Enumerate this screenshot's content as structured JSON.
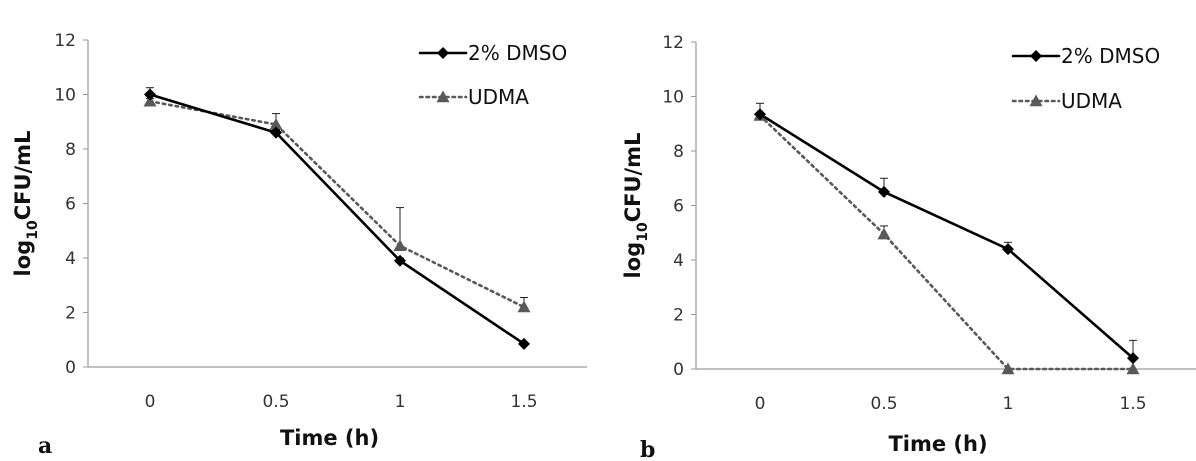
{
  "chart_data": [
    {
      "type": "line",
      "panel_label": "a",
      "xlabel": "Time (h)",
      "ylabel": {
        "main": "log",
        "sub": "10",
        "rest": "CFU/mL"
      },
      "categories": [
        "0",
        "0.5",
        "1",
        "1.5"
      ],
      "x": [
        0,
        0.5,
        1,
        1.5
      ],
      "ylim": [
        0,
        12
      ],
      "yticks": [
        0,
        2,
        4,
        6,
        8,
        10,
        12
      ],
      "grid": false,
      "legend_position": "top-right",
      "series": [
        {
          "name": "2% DMSO",
          "color": "#000000",
          "line_style": "solid",
          "marker": "diamond",
          "values": [
            10.0,
            8.6,
            3.9,
            0.85
          ],
          "error": [
            0.25,
            0.1,
            0.1,
            0.05
          ]
        },
        {
          "name": "UDMA",
          "color": "#595959",
          "line_style": "dotted",
          "marker": "triangle",
          "values": [
            9.75,
            8.9,
            4.45,
            2.2
          ],
          "error": [
            0.1,
            0.4,
            1.4,
            0.35
          ]
        }
      ]
    },
    {
      "type": "line",
      "panel_label": "b",
      "xlabel": "Time (h)",
      "ylabel": {
        "main": "log",
        "sub": "10",
        "rest": "CFU/mL"
      },
      "categories": [
        "0",
        "0.5",
        "1",
        "1.5"
      ],
      "x": [
        0,
        0.5,
        1,
        1.5
      ],
      "ylim": [
        0,
        12
      ],
      "yticks": [
        0,
        2,
        4,
        6,
        8,
        10,
        12
      ],
      "grid": false,
      "legend_position": "top-right",
      "series": [
        {
          "name": "2% DMSO",
          "color": "#000000",
          "line_style": "solid",
          "marker": "diamond",
          "values": [
            9.35,
            6.5,
            4.4,
            0.4
          ],
          "error": [
            0.4,
            0.5,
            0.25,
            0.65
          ]
        },
        {
          "name": "UDMA",
          "color": "#595959",
          "line_style": "dotted",
          "marker": "triangle",
          "values": [
            9.3,
            4.95,
            0,
            0
          ],
          "error": [
            0.1,
            0.3,
            0,
            0
          ]
        }
      ]
    }
  ]
}
